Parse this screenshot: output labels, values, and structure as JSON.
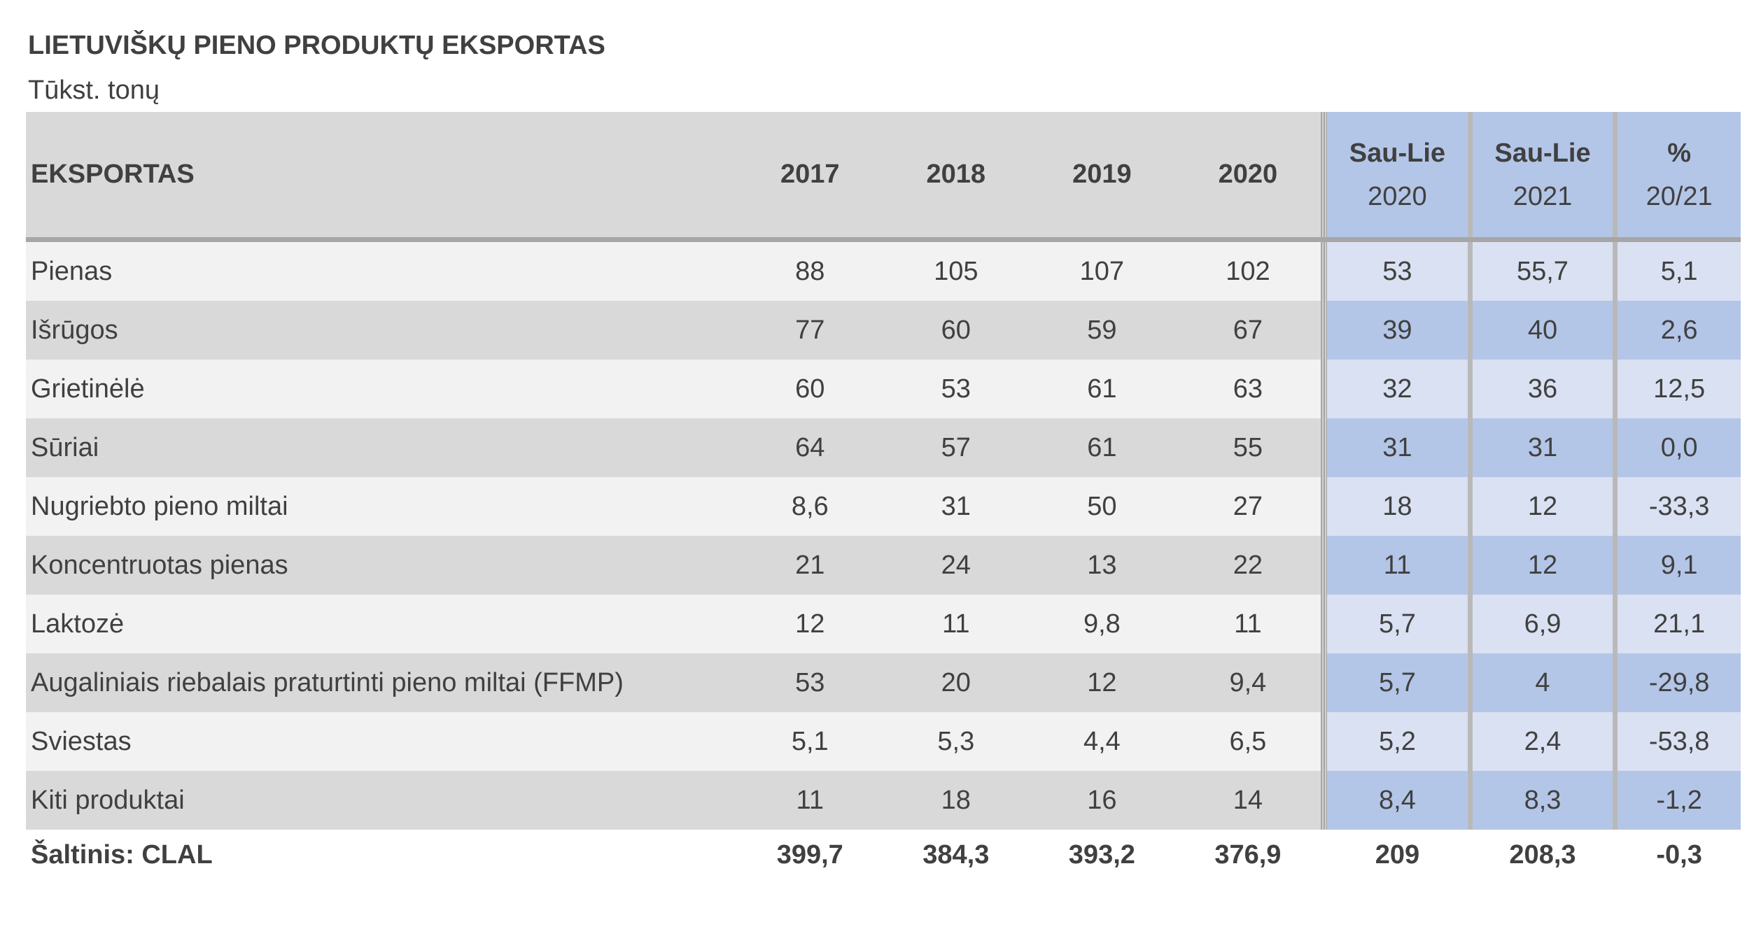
{
  "title": "LIETUVIŠKŲ PIENO PRODUKTŲ EKSPORTAS",
  "subtitle": "Tūkst. tonų",
  "header": {
    "label": "EKSPORTAS",
    "years": [
      "2017",
      "2018",
      "2019",
      "2020"
    ],
    "periods": [
      {
        "top": "Sau-Lie",
        "bottom": "2020"
      },
      {
        "top": "Sau-Lie",
        "bottom": "2021"
      }
    ],
    "pct": {
      "top": "%",
      "bottom": "20/21"
    }
  },
  "chart_data": {
    "type": "table",
    "title": "LIETUVIŠKŲ PIENO PRODUKTŲ EKSPORTAS",
    "subtitle": "Tūkst. tonų",
    "columns": [
      "EKSPORTAS",
      "2017",
      "2018",
      "2019",
      "2020",
      "Sau-Lie 2020",
      "Sau-Lie 2021",
      "% 20/21"
    ],
    "rows": [
      {
        "label": "Pienas",
        "values": [
          "88",
          "105",
          "107",
          "102",
          "53",
          "55,7",
          "5,1"
        ]
      },
      {
        "label": "Išrūgos",
        "values": [
          "77",
          "60",
          "59",
          "67",
          "39",
          "40",
          "2,6"
        ]
      },
      {
        "label": "Grietinėlė",
        "values": [
          "60",
          "53",
          "61",
          "63",
          "32",
          "36",
          "12,5"
        ]
      },
      {
        "label": "Sūriai",
        "values": [
          "64",
          "57",
          "61",
          "55",
          "31",
          "31",
          "0,0"
        ]
      },
      {
        "label": "Nugriebto pieno miltai",
        "values": [
          "8,6",
          "31",
          "50",
          "27",
          "18",
          "12",
          "-33,3"
        ]
      },
      {
        "label": "Koncentruotas pienas",
        "values": [
          "21",
          "24",
          "13",
          "22",
          "11",
          "12",
          "9,1"
        ]
      },
      {
        "label": "Laktozė",
        "values": [
          "12",
          "11",
          "9,8",
          "11",
          "5,7",
          "6,9",
          "21,1"
        ]
      },
      {
        "label": "Augaliniais riebalais praturtinti pieno miltai (FFMP)",
        "values": [
          "53",
          "20",
          "12",
          "9,4",
          "5,7",
          "4",
          "-29,8"
        ]
      },
      {
        "label": "Sviestas",
        "values": [
          "5,1",
          "5,3",
          "4,4",
          "6,5",
          "5,2",
          "2,4",
          "-53,8"
        ]
      },
      {
        "label": "Kiti produktai",
        "values": [
          "11",
          "18",
          "16",
          "14",
          "8,4",
          "8,3",
          "-1,2"
        ]
      }
    ],
    "total": {
      "label": "Šaltinis: CLAL",
      "values": [
        "399,7",
        "384,3",
        "393,2",
        "376,9",
        "209",
        "208,3",
        "-0,3"
      ]
    }
  }
}
